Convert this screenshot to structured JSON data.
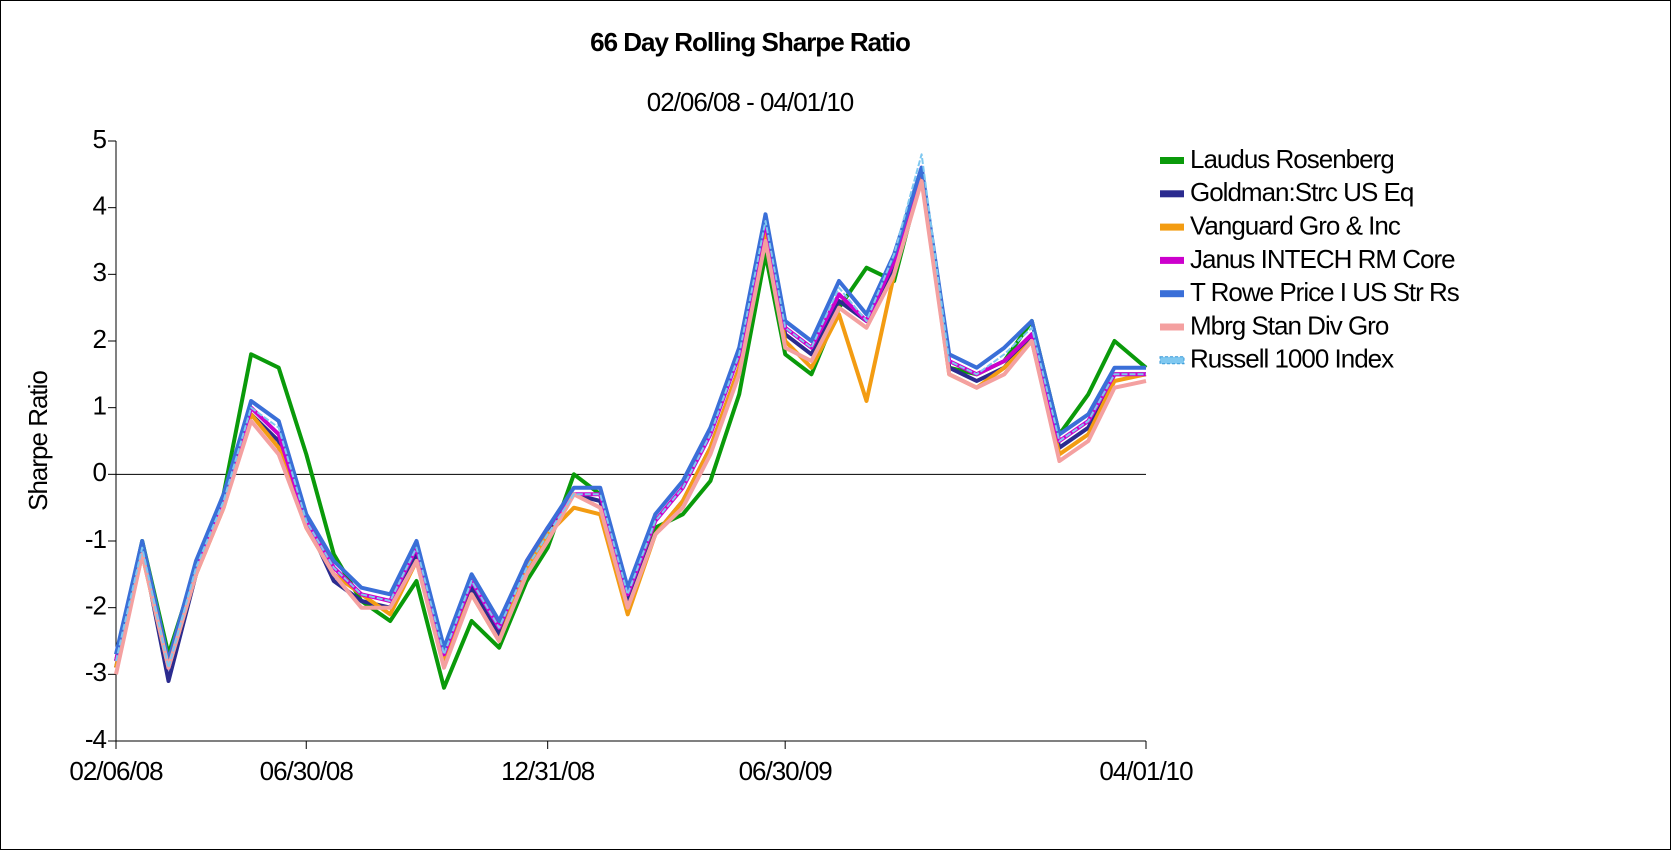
{
  "chart_data": {
    "type": "line",
    "title": "66 Day Rolling Sharpe Ratio",
    "subtitle": "02/06/08 - 04/01/10",
    "y_label": "Sharpe Ratio",
    "x": [
      "02/06/08",
      "02/26/08",
      "03/17/08",
      "04/07/08",
      "04/28/08",
      "05/19/08",
      "06/09/08",
      "06/30/08",
      "07/21/08",
      "08/11/08",
      "09/02/08",
      "09/22/08",
      "10/13/08",
      "11/03/08",
      "11/24/08",
      "12/15/08",
      "12/31/08",
      "01/20/09",
      "02/09/09",
      "03/02/09",
      "03/23/09",
      "04/13/09",
      "05/04/09",
      "05/26/09",
      "06/15/09",
      "06/30/09",
      "07/20/09",
      "08/10/09",
      "08/31/09",
      "09/21/09",
      "10/12/09",
      "11/02/09",
      "11/23/09",
      "12/14/09",
      "01/04/10",
      "01/25/10",
      "02/16/10",
      "03/08/10",
      "04/01/10"
    ],
    "xlim": [
      "02/06/08",
      "04/01/10"
    ],
    "xticks": [
      "02/06/08",
      "06/30/08",
      "12/31/08",
      "06/30/09",
      "04/01/10"
    ],
    "ylim": [
      -4,
      5
    ],
    "yticks": [
      -4,
      -3,
      -2,
      -1,
      0,
      1,
      2,
      3,
      4,
      5
    ],
    "legend": "right",
    "series": [
      {
        "name": "Laudus Rosenberg",
        "color": "#0a9a0a",
        "values": [
          -2.8,
          -1.0,
          -2.7,
          -1.4,
          -0.3,
          1.8,
          1.6,
          0.3,
          -1.2,
          -1.9,
          -2.2,
          -1.6,
          -3.2,
          -2.2,
          -2.6,
          -1.6,
          -1.1,
          0.0,
          -0.3,
          -1.8,
          -0.8,
          -0.6,
          -0.1,
          1.2,
          3.3,
          1.8,
          1.5,
          2.5,
          3.1,
          2.9,
          4.5,
          1.6,
          1.5,
          1.7,
          2.3,
          0.6,
          1.2,
          2.0,
          1.6
        ]
      },
      {
        "name": "Goldman:Strc US Eq",
        "color": "#2b2b8f",
        "values": [
          -2.9,
          -1.1,
          -3.1,
          -1.5,
          -0.4,
          0.9,
          0.5,
          -0.7,
          -1.6,
          -1.9,
          -2.0,
          -1.2,
          -2.8,
          -1.7,
          -2.4,
          -1.4,
          -0.9,
          -0.3,
          -0.4,
          -1.9,
          -0.9,
          -0.4,
          0.4,
          1.6,
          3.7,
          2.1,
          1.8,
          2.6,
          2.3,
          3.1,
          4.5,
          1.6,
          1.4,
          1.6,
          2.1,
          0.4,
          0.7,
          1.5,
          1.5
        ]
      },
      {
        "name": "Vanguard Gro & Inc",
        "color": "#f39c12",
        "values": [
          -2.9,
          -1.2,
          -2.9,
          -1.5,
          -0.5,
          0.9,
          0.4,
          -0.8,
          -1.5,
          -1.8,
          -2.1,
          -1.3,
          -2.8,
          -1.8,
          -2.5,
          -1.4,
          -0.9,
          -0.5,
          -0.6,
          -2.1,
          -0.9,
          -0.4,
          0.4,
          1.6,
          3.6,
          2.0,
          1.6,
          2.4,
          1.1,
          3.0,
          4.5,
          1.5,
          1.3,
          1.6,
          2.0,
          0.3,
          0.6,
          1.4,
          1.5
        ]
      },
      {
        "name": "Janus INTECH RM Core",
        "color": "#cc00cc",
        "values": [
          -2.8,
          -1.1,
          -2.9,
          -1.4,
          -0.4,
          1.0,
          0.6,
          -0.7,
          -1.4,
          -1.8,
          -1.9,
          -1.1,
          -2.7,
          -1.6,
          -2.3,
          -1.3,
          -0.8,
          -0.3,
          -0.3,
          -1.8,
          -0.7,
          -0.2,
          0.6,
          1.8,
          3.8,
          2.2,
          1.9,
          2.7,
          2.3,
          3.2,
          4.6,
          1.7,
          1.5,
          1.7,
          2.1,
          0.5,
          0.8,
          1.5,
          1.5
        ]
      },
      {
        "name": "T Rowe Price I US Str Rs",
        "color": "#3a6fd8",
        "values": [
          -2.7,
          -1.0,
          -2.8,
          -1.3,
          -0.3,
          1.1,
          0.8,
          -0.6,
          -1.3,
          -1.7,
          -1.8,
          -1.0,
          -2.6,
          -1.5,
          -2.2,
          -1.3,
          -0.8,
          -0.2,
          -0.2,
          -1.7,
          -0.6,
          -0.1,
          0.7,
          1.9,
          3.9,
          2.3,
          2.0,
          2.9,
          2.4,
          3.3,
          4.6,
          1.8,
          1.6,
          1.9,
          2.3,
          0.6,
          0.9,
          1.6,
          1.6
        ]
      },
      {
        "name": "Mbrg Stan Div Gro",
        "color": "#f4a0a0",
        "values": [
          -3.0,
          -1.2,
          -2.9,
          -1.5,
          -0.5,
          0.8,
          0.3,
          -0.8,
          -1.5,
          -2.0,
          -2.0,
          -1.3,
          -2.9,
          -1.8,
          -2.5,
          -1.5,
          -1.0,
          -0.3,
          -0.5,
          -2.0,
          -0.9,
          -0.5,
          0.3,
          1.5,
          3.5,
          1.9,
          1.7,
          2.5,
          2.2,
          3.0,
          4.4,
          1.5,
          1.3,
          1.5,
          2.0,
          0.2,
          0.5,
          1.3,
          1.4
        ]
      },
      {
        "name": "Russell 1000 Index",
        "color": "#7fc8f0",
        "values": [
          -2.8,
          -1.1,
          -2.9,
          -1.4,
          -0.4,
          1.0,
          0.7,
          -0.7,
          -1.4,
          -1.8,
          -1.9,
          -1.1,
          -2.7,
          -1.6,
          -2.3,
          -1.4,
          -0.9,
          -0.3,
          -0.3,
          -1.8,
          -0.7,
          -0.2,
          0.6,
          1.8,
          3.8,
          2.2,
          1.9,
          2.8,
          2.3,
          3.3,
          4.8,
          1.7,
          1.5,
          1.8,
          2.2,
          0.5,
          0.8,
          1.5,
          1.5
        ]
      }
    ]
  }
}
